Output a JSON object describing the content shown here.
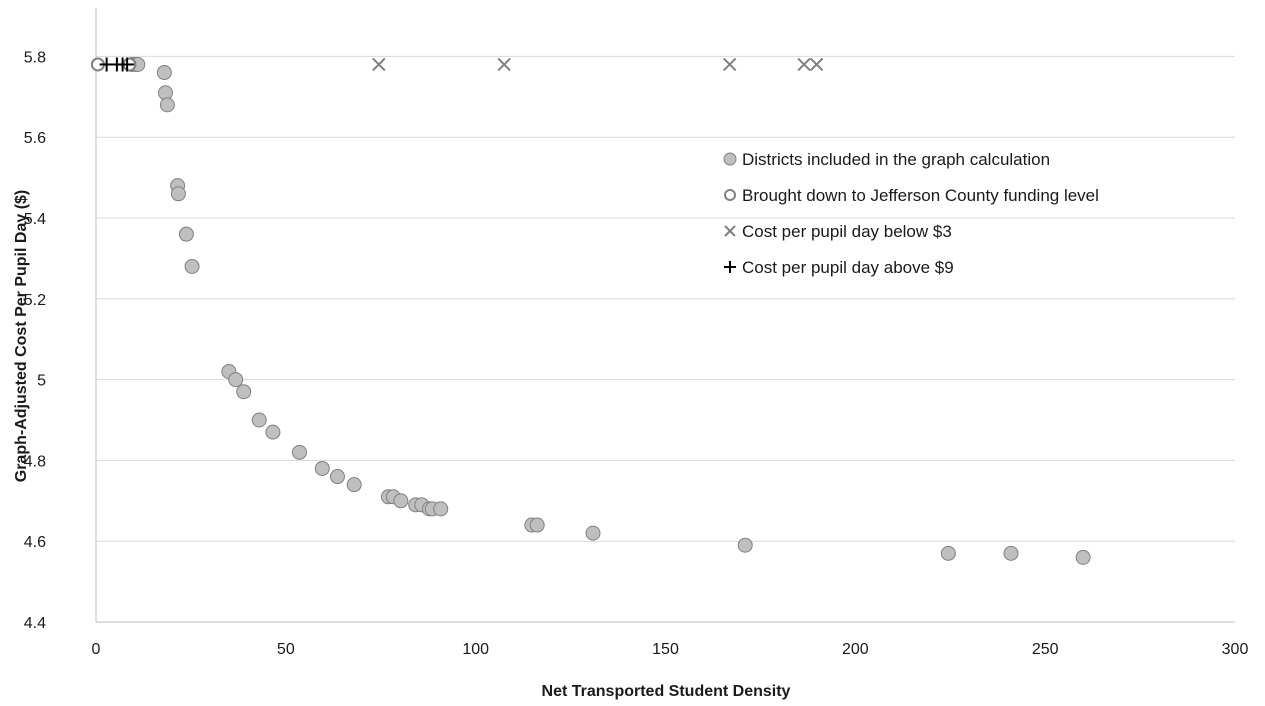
{
  "chart_data": {
    "type": "scatter",
    "xlabel": "Net Transported Student Density",
    "ylabel": "Graph-Adjusted Cost Per Pupil Day ($)",
    "xlim": [
      0,
      300
    ],
    "ylim": [
      4.4,
      5.9
    ],
    "x_ticks": [
      0,
      50,
      100,
      150,
      200,
      250,
      300
    ],
    "y_ticks": [
      4.4,
      4.6,
      4.8,
      5,
      5.2,
      5.4,
      5.6,
      5.8
    ],
    "y_tick_labels": [
      "4.4",
      "4.6",
      "4.8",
      "5",
      "5.2",
      "5.4",
      "5.6",
      "5.8"
    ],
    "grid": "horizontal",
    "legend_position": "right",
    "colors": {
      "included_fill": "#bfbfbf",
      "included_stroke": "#808080",
      "hollow_stroke": "#808080",
      "x_marker": "#808080",
      "plus_marker": "#000000",
      "grid": "#d9d9d9",
      "axis": "#bfbfbf"
    },
    "series": [
      {
        "name": "Districts included in the graph calculation",
        "marker": "filled-circle",
        "points": [
          [
            9.5,
            5.78
          ],
          [
            10.5,
            5.78
          ],
          [
            11.0,
            5.78
          ],
          [
            18.0,
            5.76
          ],
          [
            18.3,
            5.71
          ],
          [
            18.8,
            5.68
          ],
          [
            21.5,
            5.48
          ],
          [
            21.7,
            5.46
          ],
          [
            23.8,
            5.36
          ],
          [
            25.3,
            5.28
          ],
          [
            35.0,
            5.02
          ],
          [
            36.8,
            5.0
          ],
          [
            38.9,
            4.97
          ],
          [
            43.0,
            4.9
          ],
          [
            46.6,
            4.87
          ],
          [
            53.6,
            4.82
          ],
          [
            59.6,
            4.78
          ],
          [
            63.6,
            4.76
          ],
          [
            68.0,
            4.74
          ],
          [
            77.0,
            4.71
          ],
          [
            78.3,
            4.71
          ],
          [
            80.3,
            4.7
          ],
          [
            84.2,
            4.69
          ],
          [
            85.8,
            4.69
          ],
          [
            87.8,
            4.68
          ],
          [
            88.6,
            4.68
          ],
          [
            90.8,
            4.68
          ],
          [
            114.8,
            4.64
          ],
          [
            116.2,
            4.64
          ],
          [
            130.9,
            4.62
          ],
          [
            171.0,
            4.59
          ],
          [
            224.5,
            4.57
          ],
          [
            241.0,
            4.57
          ],
          [
            260.0,
            4.56
          ]
        ]
      },
      {
        "name": "Brought down to Jefferson County funding level",
        "marker": "hollow-circle",
        "points": [
          [
            0.5,
            5.78
          ],
          [
            8.8,
            5.78
          ]
        ]
      },
      {
        "name": "Cost per pupil day below $3",
        "marker": "x",
        "points": [
          [
            74.5,
            5.78
          ],
          [
            107.5,
            5.78
          ],
          [
            166.9,
            5.78
          ],
          [
            186.5,
            5.78
          ],
          [
            189.8,
            5.78
          ]
        ]
      },
      {
        "name": "Cost per pupil day above $9",
        "marker": "plus",
        "points": [
          [
            2.8,
            5.78
          ],
          [
            5.5,
            5.78
          ],
          [
            7.0,
            5.78
          ],
          [
            8.2,
            5.78
          ]
        ]
      }
    ]
  }
}
